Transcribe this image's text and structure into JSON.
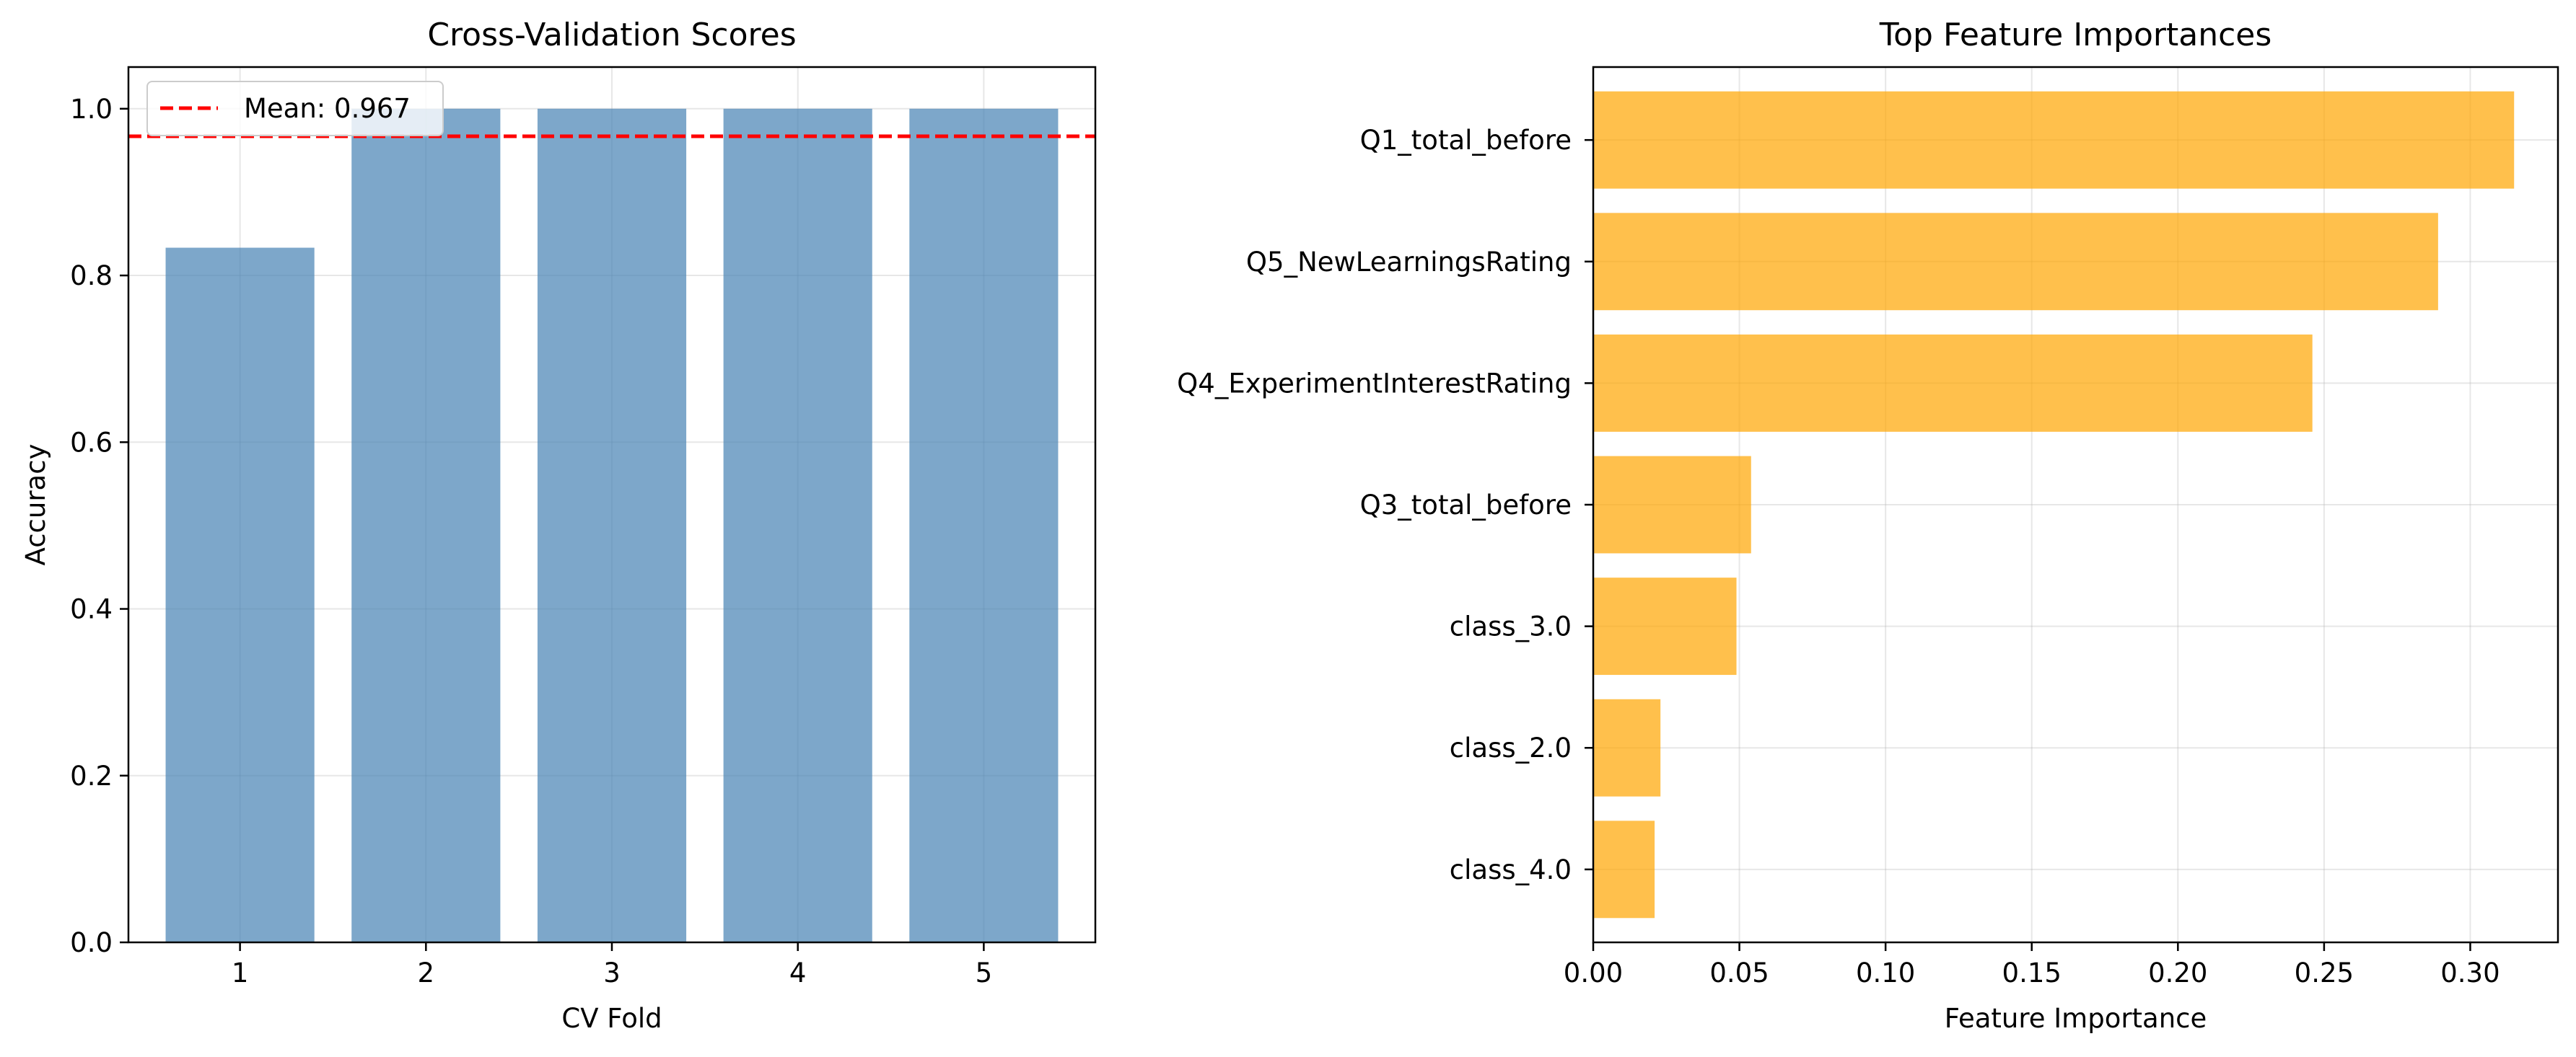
{
  "chart_data": [
    {
      "type": "bar",
      "title": "Cross-Validation Scores",
      "xlabel": "CV Fold",
      "ylabel": "Accuracy",
      "categories": [
        "1",
        "2",
        "3",
        "4",
        "5"
      ],
      "values": [
        0.8333,
        1.0,
        1.0,
        1.0,
        1.0
      ],
      "ylim": [
        0.0,
        1.05
      ],
      "yticks": [
        "0.0",
        "0.2",
        "0.4",
        "0.6",
        "0.8",
        "1.0"
      ],
      "ytick_values": [
        0.0,
        0.2,
        0.4,
        0.6,
        0.8,
        1.0
      ],
      "bar_color": "#4682b4",
      "reference_line": {
        "label": "Mean: 0.967",
        "value": 0.967,
        "color": "#ff0000",
        "style": "dashed"
      },
      "legend": {
        "position": "top-left",
        "entries": [
          "Mean: 0.967"
        ]
      },
      "grid": true
    },
    {
      "type": "bar",
      "orientation": "horizontal",
      "title": "Top Feature Importances",
      "xlabel": "Feature Importance",
      "ylabel": "",
      "categories": [
        "Q1_total_before",
        "Q5_NewLearningsRating",
        "Q4_ExperimentInterestRating",
        "Q3_total_before",
        "class_3.0",
        "class_2.0",
        "class_4.0"
      ],
      "values": [
        0.315,
        0.289,
        0.246,
        0.054,
        0.049,
        0.023,
        0.021
      ],
      "xlim": [
        0.0,
        0.33
      ],
      "xticks": [
        "0.00",
        "0.05",
        "0.10",
        "0.15",
        "0.20",
        "0.25",
        "0.30"
      ],
      "xtick_values": [
        0.0,
        0.05,
        0.1,
        0.15,
        0.2,
        0.25,
        0.3
      ],
      "bar_color": "#ffa500",
      "grid": true
    }
  ]
}
